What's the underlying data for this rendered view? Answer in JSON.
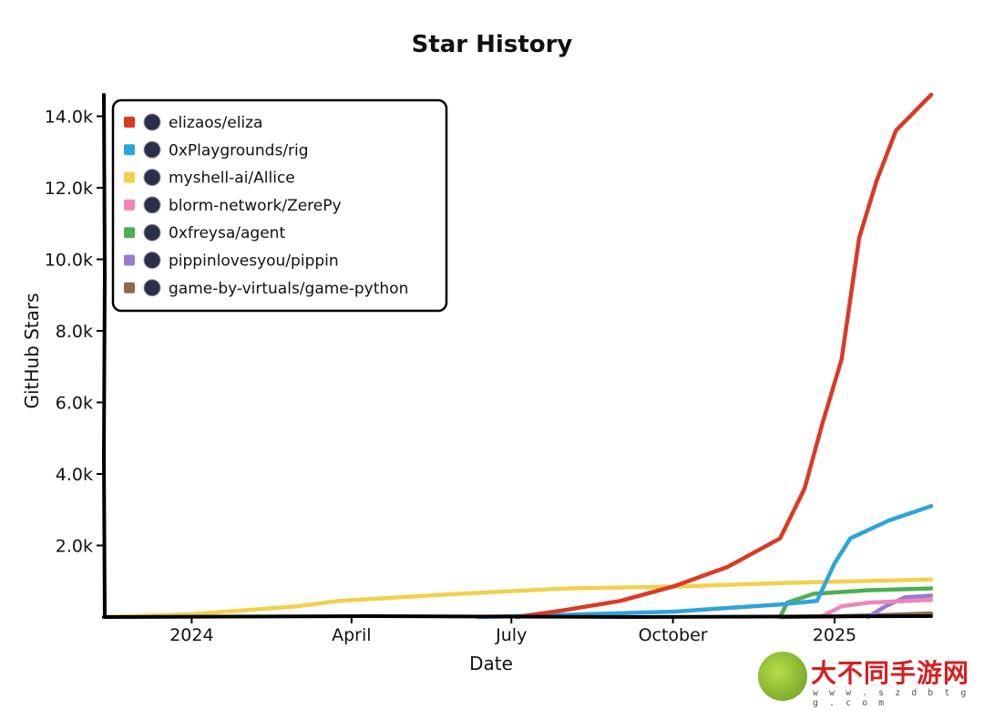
{
  "chart_data": {
    "type": "line",
    "title": "Star History",
    "xlabel": "Date",
    "ylabel": "GitHub Stars",
    "x_range": [
      "2023-11-12",
      "2025-02-25"
    ],
    "ylim": [
      0,
      14600
    ],
    "y_ticks": [
      {
        "value": 2000,
        "label": "2.0k"
      },
      {
        "value": 4000,
        "label": "4.0k"
      },
      {
        "value": 6000,
        "label": "6.0k"
      },
      {
        "value": 8000,
        "label": "8.0k"
      },
      {
        "value": 10000,
        "label": "10.0k"
      },
      {
        "value": 12000,
        "label": "12.0k"
      },
      {
        "value": 14000,
        "label": "14.0k"
      }
    ],
    "x_ticks": [
      {
        "date": "2024-01-01",
        "label": "2024"
      },
      {
        "date": "2024-04-01",
        "label": "April"
      },
      {
        "date": "2024-07-01",
        "label": "July"
      },
      {
        "date": "2024-10-01",
        "label": "October"
      },
      {
        "date": "2025-01-01",
        "label": "2025"
      }
    ],
    "grid": false,
    "legend_position": "top-left",
    "series": [
      {
        "name": "elizaos/eliza",
        "color": "#d93b25",
        "icon": "avatar-icon",
        "points": [
          [
            "2024-07-04",
            0
          ],
          [
            "2024-08-01",
            200
          ],
          [
            "2024-09-01",
            450
          ],
          [
            "2024-10-01",
            850
          ],
          [
            "2024-11-01",
            1400
          ],
          [
            "2024-12-01",
            2200
          ],
          [
            "2024-12-15",
            3600
          ],
          [
            "2024-12-25",
            5400
          ],
          [
            "2025-01-05",
            7200
          ],
          [
            "2025-01-15",
            10600
          ],
          [
            "2025-01-25",
            12200
          ],
          [
            "2025-02-05",
            13600
          ],
          [
            "2025-02-25",
            14600
          ]
        ]
      },
      {
        "name": "0xPlaygrounds/rig",
        "color": "#2fa3dc",
        "icon": "rig-logo-icon",
        "points": [
          [
            "2024-06-12",
            0
          ],
          [
            "2024-08-01",
            60
          ],
          [
            "2024-10-01",
            150
          ],
          [
            "2024-12-01",
            350
          ],
          [
            "2024-12-22",
            450
          ],
          [
            "2025-01-01",
            1500
          ],
          [
            "2025-01-10",
            2200
          ],
          [
            "2025-02-01",
            2700
          ],
          [
            "2025-02-25",
            3100
          ]
        ]
      },
      {
        "name": "myshell-ai/Allice",
        "color": "#f2d04c",
        "icon": "myshell-logo-icon",
        "points": [
          [
            "2023-11-12",
            0
          ],
          [
            "2024-01-01",
            80
          ],
          [
            "2024-03-01",
            300
          ],
          [
            "2024-03-25",
            450
          ],
          [
            "2024-06-01",
            650
          ],
          [
            "2024-08-01",
            800
          ],
          [
            "2024-10-01",
            850
          ],
          [
            "2024-12-01",
            950
          ],
          [
            "2025-02-25",
            1050
          ]
        ]
      },
      {
        "name": "blorm-network/ZerePy",
        "color": "#ee86b6",
        "icon": "gear-logo-icon",
        "points": [
          [
            "2024-12-24",
            0
          ],
          [
            "2024-12-28",
            100
          ],
          [
            "2025-01-05",
            300
          ],
          [
            "2025-01-20",
            400
          ],
          [
            "2025-02-25",
            480
          ]
        ]
      },
      {
        "name": "0xfreysa/agent",
        "color": "#4caf50",
        "icon": "avatar-icon",
        "points": [
          [
            "2024-12-01",
            0
          ],
          [
            "2024-12-05",
            400
          ],
          [
            "2024-12-20",
            650
          ],
          [
            "2025-01-20",
            750
          ],
          [
            "2025-02-25",
            800
          ]
        ]
      },
      {
        "name": "pippinlovesyou/pippin",
        "color": "#9b79d3",
        "icon": "pippin-logo-icon",
        "points": [
          [
            "2025-01-20",
            0
          ],
          [
            "2025-01-30",
            300
          ],
          [
            "2025-02-10",
            550
          ],
          [
            "2025-02-25",
            600
          ]
        ]
      },
      {
        "name": "game-by-virtuals/game-python",
        "color": "#8b6a4f",
        "icon": "game-logo-icon",
        "points": [
          [
            "2024-12-01",
            0
          ],
          [
            "2025-01-01",
            20
          ],
          [
            "2025-02-01",
            60
          ],
          [
            "2025-02-25",
            100
          ]
        ]
      }
    ]
  },
  "watermark": {
    "text": "大不同手游网",
    "url": "w w w . s z d b t g g . c o m"
  }
}
